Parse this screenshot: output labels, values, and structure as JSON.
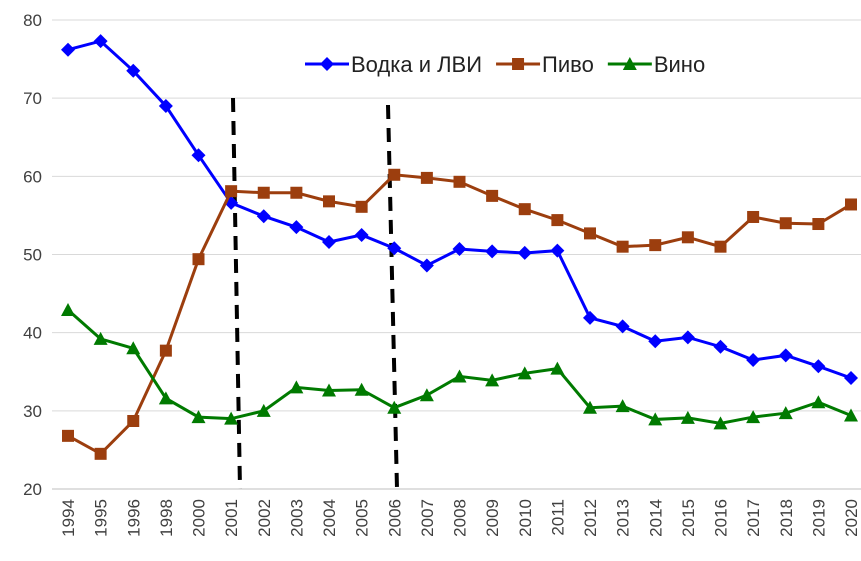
{
  "chart_data": {
    "type": "line",
    "categories": [
      "1994",
      "1995",
      "1996",
      "1998",
      "2000",
      "2001",
      "2002",
      "2003",
      "2004",
      "2005",
      "2006",
      "2007",
      "2008",
      "2009",
      "2010",
      "2011",
      "2012",
      "2013",
      "2014",
      "2015",
      "2016",
      "2017",
      "2018",
      "2019",
      "2020"
    ],
    "series": [
      {
        "name": "Водка и ЛВИ",
        "color": "#0000ff",
        "marker": "diamond",
        "values": [
          76.2,
          77.3,
          73.5,
          69.0,
          62.7,
          56.6,
          54.9,
          53.5,
          51.6,
          52.5,
          50.8,
          48.6,
          50.7,
          50.4,
          50.2,
          50.5,
          41.9,
          40.8,
          38.9,
          39.4,
          38.2,
          36.5,
          37.1,
          35.7,
          34.2
        ]
      },
      {
        "name": "Пиво",
        "color": "#9c3e0e",
        "marker": "square",
        "values": [
          26.8,
          24.5,
          28.7,
          37.7,
          49.4,
          58.1,
          57.9,
          57.9,
          56.8,
          56.1,
          60.2,
          59.8,
          59.3,
          57.5,
          55.8,
          54.4,
          52.7,
          51.0,
          51.2,
          52.2,
          51.0,
          54.8,
          54.0,
          53.9,
          56.4
        ]
      },
      {
        "name": "Вино",
        "color": "#007a00",
        "marker": "triangle",
        "values": [
          42.9,
          39.2,
          38.0,
          31.6,
          29.2,
          29.0,
          30.0,
          33.0,
          32.6,
          32.7,
          30.4,
          32.0,
          34.4,
          33.9,
          34.8,
          35.4,
          30.4,
          30.6,
          28.9,
          29.1,
          28.4,
          29.2,
          29.7,
          31.1,
          29.4
        ]
      }
    ],
    "ylim": [
      20,
      80
    ],
    "yticks": [
      20,
      30,
      40,
      50,
      60,
      70,
      80
    ],
    "grid": true,
    "legend": "top-right"
  }
}
